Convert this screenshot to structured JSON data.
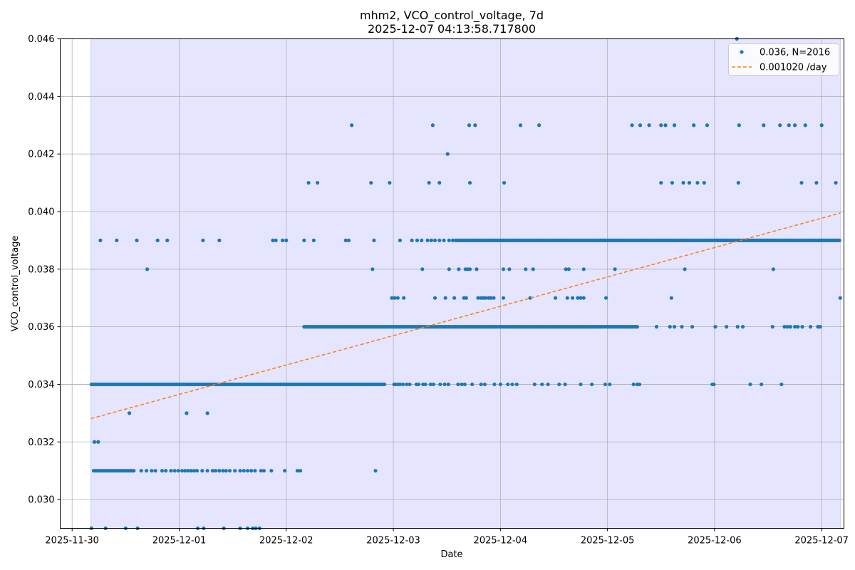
{
  "chart_data": {
    "type": "scatter",
    "title": "mhm2, VCO_control_voltage, 7d",
    "subtitle": "2025-12-07 04:13:58.717800",
    "xlabel": "Date",
    "ylabel": "VCO_control_voltage",
    "x_range": [
      "2025-11-29T21:20",
      "2025-12-07T05:00"
    ],
    "ylim": [
      0.029,
      0.046
    ],
    "x_ticks": [
      "2025-11-30",
      "2025-12-01",
      "2025-12-02",
      "2025-12-03",
      "2025-12-04",
      "2025-12-05",
      "2025-12-06",
      "2025-12-07"
    ],
    "y_ticks": [
      0.03,
      0.032,
      0.034,
      0.036,
      0.038,
      0.04,
      0.042,
      0.044,
      0.046
    ],
    "y_tick_labels": [
      "0.030",
      "0.032",
      "0.034",
      "0.036",
      "0.038",
      "0.040",
      "0.042",
      "0.044",
      "0.046"
    ],
    "grid": true,
    "legend_position": "top-right",
    "shaded_span": [
      "2025-11-30T04:13:58",
      "2025-12-07T04:13:58"
    ],
    "colors": {
      "points": "#1f77b4",
      "trend": "#ff7f0e",
      "span": "#e5e5ff",
      "span_edge": "#c8c8f5",
      "grid": "#b0b0b0"
    },
    "series": [
      {
        "name": "0.036, N=2016",
        "kind": "scatter",
        "bands": [
          {
            "y": 0.034,
            "intervals": [
              [
                "2025-11-30T04:20",
                "2025-12-02T22:00"
              ]
            ],
            "points": [
              "2025-12-03T00:10",
              "2025-12-03T00:30",
              "2025-12-03T01:00",
              "2025-12-03T01:30",
              "2025-12-03T02:10",
              "2025-12-03T03:00",
              "2025-12-03T03:40",
              "2025-12-03T05:10",
              "2025-12-03T05:40",
              "2025-12-03T06:40",
              "2025-12-03T07:10",
              "2025-12-03T08:20",
              "2025-12-03T09:00",
              "2025-12-03T10:30",
              "2025-12-03T11:30",
              "2025-12-03T12:20",
              "2025-12-03T14:30",
              "2025-12-03T15:20",
              "2025-12-03T16:00",
              "2025-12-03T17:40",
              "2025-12-03T19:40",
              "2025-12-03T20:30",
              "2025-12-03T22:40",
              "2025-12-04T00:00",
              "2025-12-04T01:40",
              "2025-12-04T02:40",
              "2025-12-04T03:40",
              "2025-12-04T07:40",
              "2025-12-04T09:20",
              "2025-12-04T10:40",
              "2025-12-04T13:10",
              "2025-12-04T14:30",
              "2025-12-04T18:00",
              "2025-12-04T20:30",
              "2025-12-04T23:30",
              "2025-12-05T00:30",
              "2025-12-05T05:50",
              "2025-12-05T06:40",
              "2025-12-05T07:10",
              "2025-12-05T23:30",
              "2025-12-05T23:50",
              "2025-12-06T08:00",
              "2025-12-06T10:30",
              "2025-12-06T15:00"
            ]
          },
          {
            "y": 0.036,
            "intervals": [
              [
                "2025-12-02T04:00",
                "2025-12-05T06:50"
              ]
            ],
            "points": [
              "2025-12-05T11:00",
              "2025-12-05T14:00",
              "2025-12-05T15:00",
              "2025-12-05T16:40",
              "2025-12-05T19:00",
              "2025-12-06T00:10",
              "2025-12-06T02:40",
              "2025-12-06T05:10",
              "2025-12-06T06:20",
              "2025-12-06T13:00",
              "2025-12-06T15:40",
              "2025-12-06T16:20",
              "2025-12-06T17:00",
              "2025-12-06T18:00",
              "2025-12-06T18:40",
              "2025-12-06T19:40",
              "2025-12-06T21:30",
              "2025-12-06T23:10",
              "2025-12-06T23:40"
            ]
          },
          {
            "y": 0.039,
            "intervals": [
              [
                "2025-12-03T14:00",
                "2025-12-07T04:10"
              ]
            ],
            "points": [
              "2025-11-30T06:20",
              "2025-11-30T10:00",
              "2025-11-30T14:30",
              "2025-11-30T19:10",
              "2025-11-30T21:20",
              "2025-12-01T05:20",
              "2025-12-01T09:00",
              "2025-12-01T21:00",
              "2025-12-01T21:40",
              "2025-12-01T23:10",
              "2025-12-02T00:00",
              "2025-12-02T04:00",
              "2025-12-02T06:10",
              "2025-12-02T13:20",
              "2025-12-02T14:00",
              "2025-12-02T19:40",
              "2025-12-03T01:30",
              "2025-12-03T04:10",
              "2025-12-03T05:20",
              "2025-12-03T06:20",
              "2025-12-03T07:40",
              "2025-12-03T08:30",
              "2025-12-03T09:20",
              "2025-12-03T10:20",
              "2025-12-03T11:20",
              "2025-12-03T12:30",
              "2025-12-03T13:20"
            ]
          },
          {
            "y": 0.031,
            "intervals": [
              [
                "2025-11-30T04:50",
                "2025-11-30T14:00"
              ]
            ],
            "points": [
              "2025-11-30T15:30",
              "2025-11-30T16:40",
              "2025-11-30T17:50",
              "2025-11-30T18:40",
              "2025-11-30T20:10",
              "2025-11-30T21:00",
              "2025-11-30T22:10",
              "2025-11-30T23:00",
              "2025-11-30T23:50",
              "2025-12-01T00:40",
              "2025-12-01T01:20",
              "2025-12-01T02:00",
              "2025-12-01T02:40",
              "2025-12-01T03:20",
              "2025-12-01T04:00",
              "2025-12-01T05:10",
              "2025-12-01T06:20",
              "2025-12-01T07:30",
              "2025-12-01T08:10",
              "2025-12-01T09:00",
              "2025-12-01T09:50",
              "2025-12-01T10:30",
              "2025-12-01T11:20",
              "2025-12-01T12:30",
              "2025-12-01T13:40",
              "2025-12-01T14:30",
              "2025-12-01T15:20",
              "2025-12-01T16:10",
              "2025-12-01T17:00",
              "2025-12-01T18:20",
              "2025-12-01T19:00",
              "2025-12-01T20:40",
              "2025-12-01T23:40",
              "2025-12-02T02:30",
              "2025-12-02T03:10",
              "2025-12-02T20:00"
            ]
          },
          {
            "y": 0.037,
            "intervals": [],
            "points": [
              "2025-12-02T23:40",
              "2025-12-03T00:20",
              "2025-12-03T01:00",
              "2025-12-03T02:20",
              "2025-12-03T09:20",
              "2025-12-03T11:40",
              "2025-12-03T13:40",
              "2025-12-03T15:50",
              "2025-12-03T16:20",
              "2025-12-03T19:00",
              "2025-12-03T19:40",
              "2025-12-03T20:10",
              "2025-12-03T20:40",
              "2025-12-03T21:20",
              "2025-12-03T21:50",
              "2025-12-03T22:30",
              "2025-12-04T00:40",
              "2025-12-04T06:40",
              "2025-12-04T12:20",
              "2025-12-04T15:00",
              "2025-12-04T16:10",
              "2025-12-04T17:20",
              "2025-12-04T18:00",
              "2025-12-04T18:40",
              "2025-12-04T23:40",
              "2025-12-05T14:20",
              "2025-12-07T04:10"
            ]
          },
          {
            "y": 0.038,
            "intervals": [],
            "points": [
              "2025-11-30T16:50",
              "2025-12-02T19:20",
              "2025-12-03T06:30",
              "2025-12-03T12:30",
              "2025-12-03T14:40",
              "2025-12-03T16:10",
              "2025-12-03T16:40",
              "2025-12-03T17:10",
              "2025-12-03T18:40",
              "2025-12-04T00:40",
              "2025-12-04T02:00",
              "2025-12-04T05:40",
              "2025-12-04T07:20",
              "2025-12-04T14:40",
              "2025-12-04T15:20",
              "2025-12-04T18:40",
              "2025-12-05T01:40",
              "2025-12-05T17:20",
              "2025-12-06T13:10"
            ]
          },
          {
            "y": 0.041,
            "intervals": [],
            "points": [
              "2025-12-02T05:00",
              "2025-12-02T07:00",
              "2025-12-02T19:00",
              "2025-12-02T23:10",
              "2025-12-03T08:00",
              "2025-12-03T10:20",
              "2025-12-03T17:10",
              "2025-12-04T00:50",
              "2025-12-05T12:00",
              "2025-12-05T14:30",
              "2025-12-05T17:00",
              "2025-12-05T18:20",
              "2025-12-05T20:10",
              "2025-12-05T21:40",
              "2025-12-06T05:20",
              "2025-12-06T19:30",
              "2025-12-06T22:50",
              "2025-12-07T03:10"
            ]
          },
          {
            "y": 0.043,
            "intervals": [],
            "points": [
              "2025-12-02T14:40",
              "2025-12-03T08:50",
              "2025-12-03T17:00",
              "2025-12-03T18:20",
              "2025-12-04T04:30",
              "2025-12-04T08:40",
              "2025-12-05T05:30",
              "2025-12-05T07:20",
              "2025-12-05T09:20",
              "2025-12-05T12:00",
              "2025-12-05T13:00",
              "2025-12-05T15:00",
              "2025-12-05T19:20",
              "2025-12-05T22:20",
              "2025-12-06T05:30",
              "2025-12-06T11:00",
              "2025-12-06T14:40",
              "2025-12-06T16:40",
              "2025-12-06T18:00",
              "2025-12-06T20:20",
              "2025-12-07T00:00"
            ]
          },
          {
            "y": 0.03,
            "intervals": [],
            "points": []
          },
          {
            "y": 0.032,
            "intervals": [],
            "points": [
              "2025-11-30T05:00",
              "2025-11-30T05:50"
            ]
          },
          {
            "y": 0.033,
            "intervals": [],
            "points": [
              "2025-11-30T12:50",
              "2025-12-01T01:40",
              "2025-12-01T06:20"
            ]
          },
          {
            "y": 0.042,
            "intervals": [],
            "points": [
              "2025-12-03T12:10"
            ]
          },
          {
            "y": 0.046,
            "intervals": [],
            "points": [
              "2025-12-06T05:00"
            ]
          },
          {
            "y": 0.029,
            "intervals": [],
            "points": [
              "2025-11-30T04:20",
              "2025-11-30T07:30",
              "2025-11-30T12:00",
              "2025-11-30T14:40",
              "2025-12-01T04:10",
              "2025-12-01T05:30",
              "2025-12-01T10:00",
              "2025-12-01T13:40",
              "2025-12-01T15:20",
              "2025-12-01T16:30",
              "2025-12-01T17:10",
              "2025-12-01T18:00"
            ]
          }
        ]
      },
      {
        "name": "0.001020 /day",
        "kind": "trend",
        "x": [
          "2025-11-30T04:13",
          "2025-12-07T04:13"
        ],
        "y": [
          0.03281,
          0.03995
        ]
      }
    ]
  }
}
